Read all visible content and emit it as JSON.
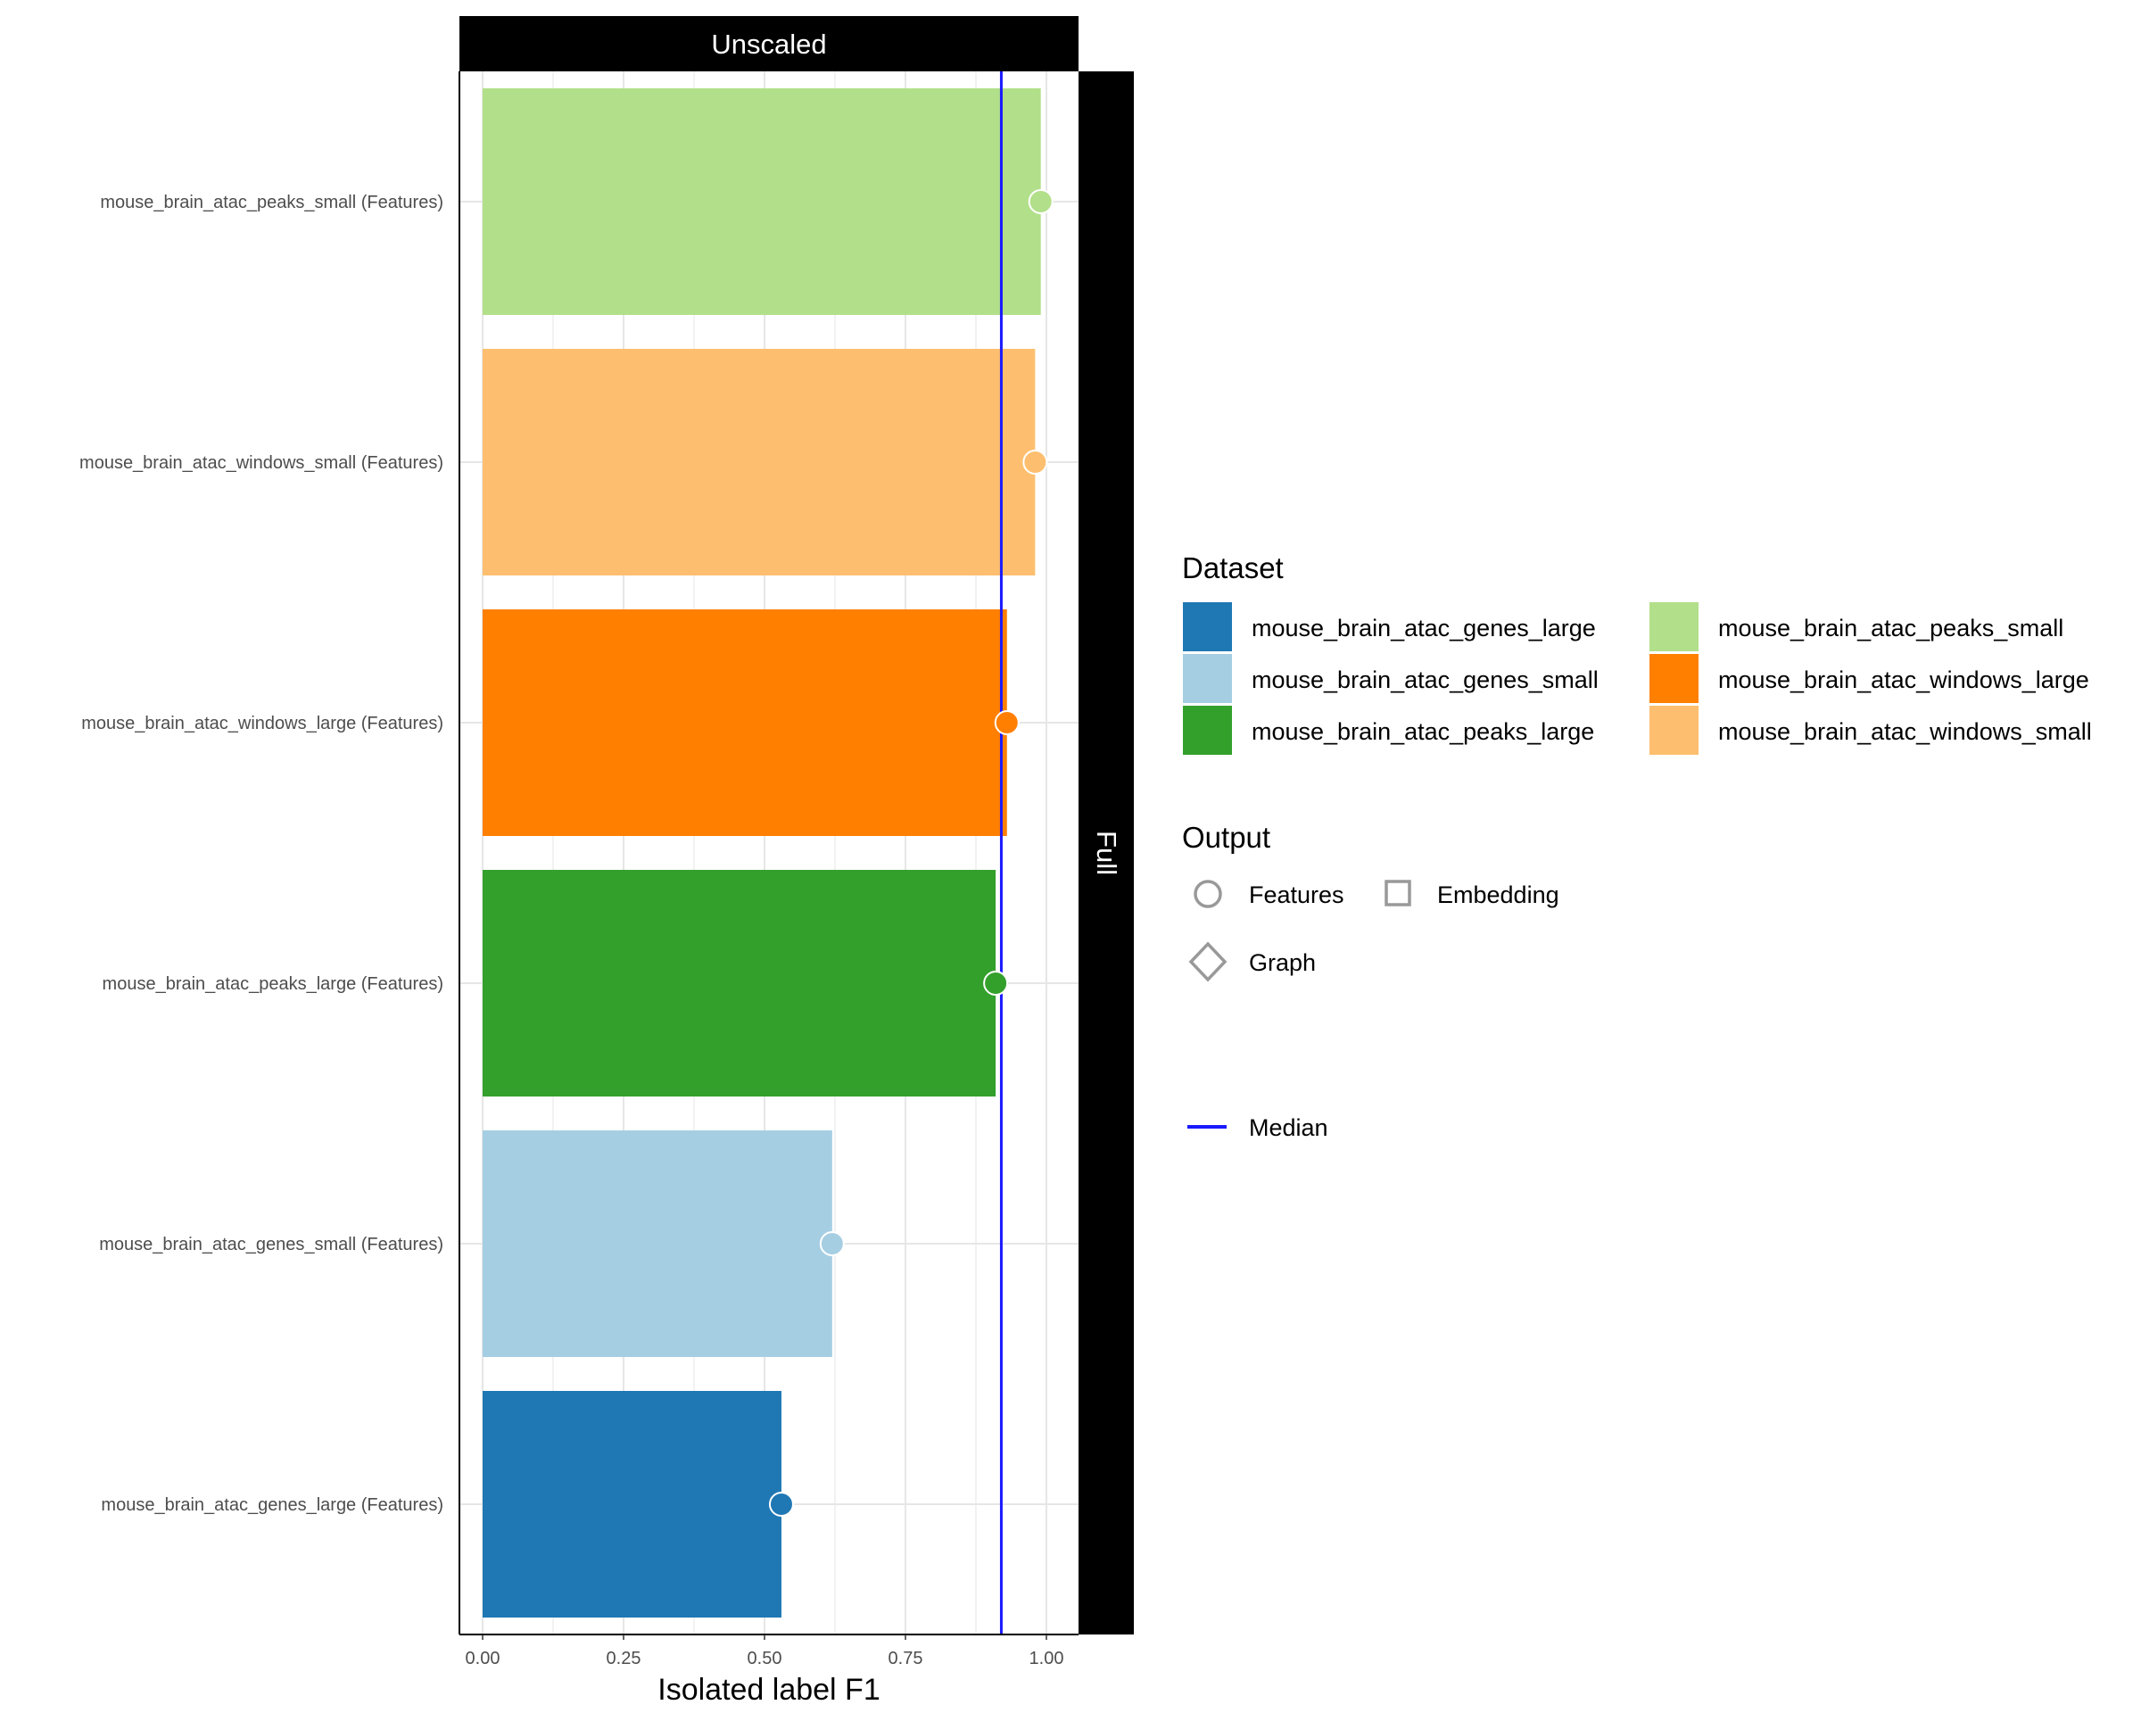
{
  "chart_data": {
    "type": "bar",
    "orientation": "horizontal",
    "facet_top": "Unscaled",
    "facet_right": "Full",
    "xlabel": "Isolated label F1",
    "ylabel": "",
    "xlim": [
      0,
      1.05
    ],
    "xticks": [
      "0.00",
      "0.25",
      "0.50",
      "0.75",
      "1.00"
    ],
    "xtick_values": [
      0,
      0.25,
      0.5,
      0.75,
      1.0
    ],
    "grid": true,
    "median": 0.92,
    "bars": [
      {
        "label": "mouse_brain_atac_peaks_small (Features)",
        "dataset": "mouse_brain_atac_peaks_small",
        "output": "Features",
        "value": 0.99
      },
      {
        "label": "mouse_brain_atac_windows_small (Features)",
        "dataset": "mouse_brain_atac_windows_small",
        "output": "Features",
        "value": 0.98
      },
      {
        "label": "mouse_brain_atac_windows_large (Features)",
        "dataset": "mouse_brain_atac_windows_large",
        "output": "Features",
        "value": 0.93
      },
      {
        "label": "mouse_brain_atac_peaks_large (Features)",
        "dataset": "mouse_brain_atac_peaks_large",
        "output": "Features",
        "value": 0.91
      },
      {
        "label": "mouse_brain_atac_genes_small (Features)",
        "dataset": "mouse_brain_atac_genes_small",
        "output": "Features",
        "value": 0.62
      },
      {
        "label": "mouse_brain_atac_genes_large (Features)",
        "dataset": "mouse_brain_atac_genes_large",
        "output": "Features",
        "value": 0.53
      }
    ],
    "legend": {
      "placement": "right",
      "dataset_title": "Dataset",
      "datasets": [
        {
          "name": "mouse_brain_atac_genes_large",
          "color": "#1F78B4"
        },
        {
          "name": "mouse_brain_atac_genes_small",
          "color": "#A6CEE3"
        },
        {
          "name": "mouse_brain_atac_peaks_large",
          "color": "#33A02C"
        },
        {
          "name": "mouse_brain_atac_peaks_small",
          "color": "#B2DF8A"
        },
        {
          "name": "mouse_brain_atac_windows_large",
          "color": "#FF7F00"
        },
        {
          "name": "mouse_brain_atac_windows_small",
          "color": "#FDBF6F"
        }
      ],
      "output_title": "Output",
      "outputs": [
        {
          "name": "Features",
          "shape": "circle"
        },
        {
          "name": "Embedding",
          "shape": "square"
        },
        {
          "name": "Graph",
          "shape": "diamond"
        }
      ],
      "median_label": "Median",
      "median_color": "#1a1aff"
    }
  }
}
